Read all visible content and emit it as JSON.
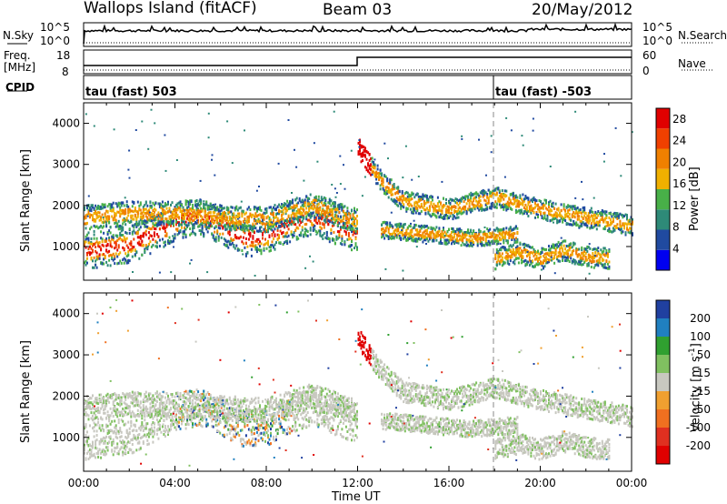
{
  "header": {
    "station": "Wallops Island (fitACF)",
    "beam": "Beam 03",
    "date": "20/May/2012"
  },
  "strip_labels": {
    "nsky": "N.Sky",
    "nsky_ticks": [
      "10^5",
      "10^0"
    ],
    "freq": "Freq.",
    "freq_unit": "[MHz]",
    "freq_ticks": [
      "18",
      "8"
    ],
    "cpid": "CPID",
    "nsearch": "N.Search",
    "nsearch_ticks": [
      "10^5",
      "10^0"
    ],
    "nave": "Nave",
    "nave_ticks": [
      "60",
      "0"
    ],
    "cpid_left": "tau (fast) 503",
    "cpid_right": "tau (fast) -503"
  },
  "chart_data": [
    {
      "type": "heatmap",
      "panel": "power",
      "ylabel": "Slant Range [km]",
      "yticks": [
        1000,
        2000,
        3000,
        4000
      ],
      "ylim": [
        180,
        4500
      ],
      "colorbar_label": "Power [dB]",
      "colorbar_ticks": [
        4,
        8,
        12,
        16,
        20,
        24,
        28
      ],
      "colorbar_range": [
        0,
        30
      ],
      "colors": [
        "#2030e0",
        "#205aa0",
        "#2e8a78",
        "#3cb050",
        "#f0a000",
        "#f07000",
        "#e02000"
      ]
    },
    {
      "type": "heatmap",
      "panel": "velocity",
      "ylabel": "Slant Range [km]",
      "xlabel": "Time UT",
      "xticks": [
        "00:00",
        "04:00",
        "08:00",
        "12:00",
        "16:00",
        "20:00",
        "00:00"
      ],
      "yticks": [
        1000,
        2000,
        3000,
        4000
      ],
      "ylim": [
        180,
        4500
      ],
      "colorbar_label": "Velocity [m s^-1]",
      "colorbar_ticks": [
        200,
        100,
        50,
        15,
        -15,
        -50,
        -100,
        -200
      ],
      "colors": [
        "#2040a0",
        "#2080c0",
        "#30a030",
        "#80c060",
        "#c8c8c0",
        "#f0a030",
        "#f07020",
        "#e03020",
        "#e00000"
      ]
    }
  ],
  "colors": {
    "power_scale": [
      "#0000f0",
      "#204aa0",
      "#2e8a78",
      "#48b048",
      "#f0b000",
      "#f08000",
      "#f04000",
      "#e00000"
    ],
    "velocity_scale": [
      "#2040a0",
      "#2080c0",
      "#30a030",
      "#80c060",
      "#c8c8c0",
      "#f0a030",
      "#f07020",
      "#e03020",
      "#e00000"
    ]
  }
}
